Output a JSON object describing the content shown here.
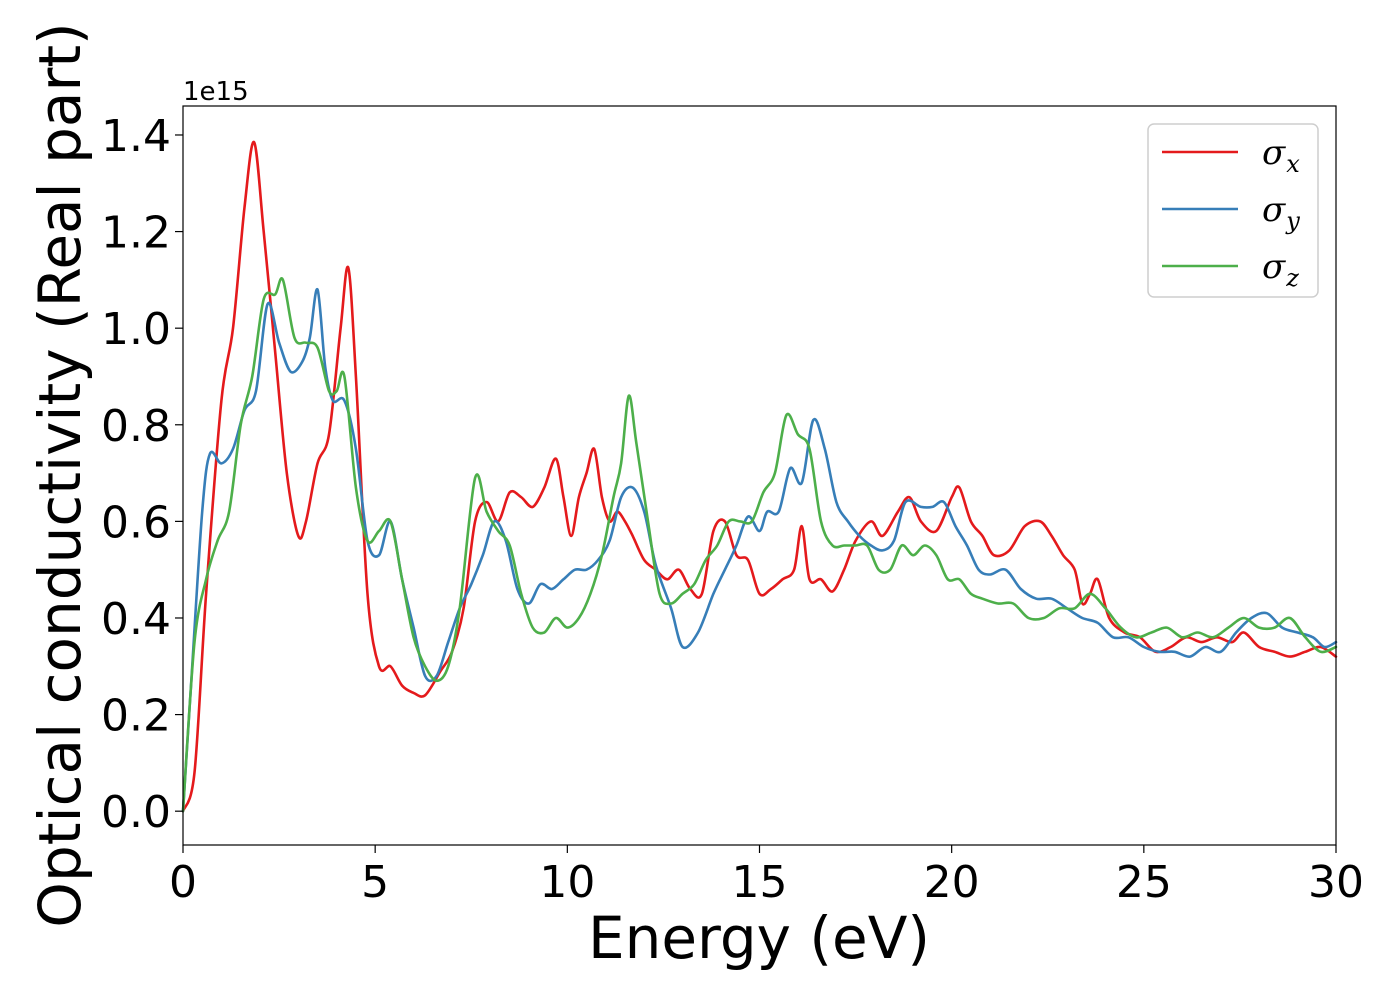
{
  "chart_data": {
    "type": "line",
    "title": "",
    "xlabel": "Energy (eV)",
    "ylabel": "Optical conductivity (Real part)",
    "y_offset_label": "1e15",
    "xlim": [
      0,
      30
    ],
    "ylim": [
      -0.07,
      1.46
    ],
    "xticks": [
      0,
      5,
      10,
      15,
      20,
      25,
      30
    ],
    "xtick_labels": [
      "0",
      "5",
      "10",
      "15",
      "20",
      "25",
      "30"
    ],
    "yticks": [
      0.0,
      0.2,
      0.4,
      0.6,
      0.8,
      1.0,
      1.2,
      1.4
    ],
    "ytick_labels": [
      "0.0",
      "0.2",
      "0.4",
      "0.6",
      "0.8",
      "1.0",
      "1.2",
      "1.4"
    ],
    "legend_position": "top-right",
    "series": [
      {
        "name": "σx",
        "symbol": "σ",
        "subscript": "x",
        "color": "#e41a1c",
        "x": [
          0,
          0.3,
          0.6,
          1.0,
          1.3,
          1.6,
          1.85,
          2.1,
          2.4,
          2.7,
          3.0,
          3.2,
          3.5,
          3.8,
          4.1,
          4.3,
          4.5,
          4.8,
          5.1,
          5.4,
          5.7,
          6.0,
          6.3,
          6.7,
          7.0,
          7.3,
          7.6,
          7.9,
          8.2,
          8.5,
          8.8,
          9.1,
          9.4,
          9.7,
          9.9,
          10.1,
          10.3,
          10.5,
          10.7,
          10.9,
          11.1,
          11.3,
          11.5,
          11.7,
          12.0,
          12.3,
          12.6,
          12.9,
          13.2,
          13.5,
          13.8,
          14.1,
          14.4,
          14.7,
          15.0,
          15.3,
          15.6,
          15.9,
          16.1,
          16.3,
          16.6,
          16.9,
          17.2,
          17.5,
          17.9,
          18.2,
          18.6,
          18.9,
          19.2,
          19.6,
          20.0,
          20.2,
          20.5,
          20.8,
          21.1,
          21.5,
          21.9,
          22.3,
          22.6,
          22.9,
          23.2,
          23.4,
          23.6,
          23.8,
          24.1,
          24.5,
          24.9,
          25.3,
          25.7,
          26.1,
          26.5,
          26.9,
          27.3,
          27.6,
          28.0,
          28.4,
          28.8,
          29.2,
          29.6,
          30.0
        ],
        "values": [
          0.0,
          0.08,
          0.45,
          0.85,
          1.0,
          1.25,
          1.385,
          1.2,
          0.95,
          0.7,
          0.57,
          0.6,
          0.72,
          0.78,
          1.0,
          1.125,
          0.9,
          0.45,
          0.3,
          0.3,
          0.26,
          0.245,
          0.24,
          0.29,
          0.33,
          0.42,
          0.6,
          0.64,
          0.6,
          0.66,
          0.65,
          0.63,
          0.67,
          0.73,
          0.65,
          0.57,
          0.65,
          0.7,
          0.75,
          0.65,
          0.6,
          0.62,
          0.6,
          0.57,
          0.52,
          0.5,
          0.48,
          0.5,
          0.46,
          0.45,
          0.58,
          0.6,
          0.53,
          0.52,
          0.45,
          0.46,
          0.48,
          0.5,
          0.59,
          0.48,
          0.48,
          0.455,
          0.5,
          0.56,
          0.6,
          0.57,
          0.62,
          0.65,
          0.6,
          0.58,
          0.65,
          0.67,
          0.6,
          0.57,
          0.53,
          0.54,
          0.59,
          0.6,
          0.57,
          0.53,
          0.5,
          0.43,
          0.45,
          0.48,
          0.4,
          0.37,
          0.36,
          0.33,
          0.34,
          0.36,
          0.35,
          0.36,
          0.35,
          0.37,
          0.34,
          0.33,
          0.32,
          0.33,
          0.34,
          0.32
        ]
      },
      {
        "name": "σy",
        "symbol": "σ",
        "subscript": "y",
        "color": "#377eb8",
        "x": [
          0,
          0.2,
          0.5,
          0.7,
          1.0,
          1.3,
          1.6,
          1.9,
          2.2,
          2.5,
          2.8,
          3.1,
          3.3,
          3.5,
          3.7,
          3.9,
          4.2,
          4.5,
          4.8,
          5.1,
          5.4,
          5.7,
          6.0,
          6.3,
          6.6,
          6.9,
          7.2,
          7.5,
          7.8,
          8.1,
          8.4,
          8.7,
          9.0,
          9.3,
          9.6,
          9.9,
          10.2,
          10.5,
          10.8,
          11.1,
          11.4,
          11.7,
          12.0,
          12.3,
          12.7,
          13.0,
          13.4,
          13.8,
          14.1,
          14.4,
          14.7,
          15.0,
          15.2,
          15.5,
          15.8,
          16.1,
          16.4,
          16.7,
          17.0,
          17.3,
          17.6,
          17.9,
          18.2,
          18.5,
          18.8,
          19.2,
          19.5,
          19.8,
          20.1,
          20.4,
          20.7,
          21.0,
          21.4,
          21.8,
          22.2,
          22.6,
          23.0,
          23.4,
          23.8,
          24.2,
          24.6,
          25.0,
          25.4,
          25.8,
          26.2,
          26.6,
          27.0,
          27.4,
          27.8,
          28.2,
          28.6,
          29.0,
          29.4,
          29.7,
          30.0
        ],
        "values": [
          0.0,
          0.25,
          0.62,
          0.74,
          0.72,
          0.75,
          0.83,
          0.87,
          1.05,
          0.97,
          0.91,
          0.93,
          0.98,
          1.08,
          0.92,
          0.85,
          0.85,
          0.75,
          0.56,
          0.53,
          0.6,
          0.48,
          0.38,
          0.28,
          0.28,
          0.35,
          0.42,
          0.47,
          0.53,
          0.6,
          0.56,
          0.46,
          0.43,
          0.47,
          0.46,
          0.48,
          0.5,
          0.5,
          0.52,
          0.56,
          0.65,
          0.67,
          0.62,
          0.51,
          0.42,
          0.34,
          0.37,
          0.45,
          0.5,
          0.55,
          0.61,
          0.58,
          0.62,
          0.62,
          0.71,
          0.68,
          0.81,
          0.75,
          0.64,
          0.6,
          0.57,
          0.55,
          0.54,
          0.56,
          0.64,
          0.63,
          0.63,
          0.64,
          0.59,
          0.55,
          0.5,
          0.49,
          0.5,
          0.46,
          0.44,
          0.44,
          0.42,
          0.4,
          0.39,
          0.36,
          0.36,
          0.34,
          0.33,
          0.33,
          0.32,
          0.34,
          0.33,
          0.37,
          0.4,
          0.41,
          0.38,
          0.37,
          0.36,
          0.34,
          0.35
        ]
      },
      {
        "name": "σz",
        "symbol": "σ",
        "subscript": "z",
        "color": "#4daf4a",
        "x": [
          0,
          0.3,
          0.6,
          0.9,
          1.2,
          1.5,
          1.8,
          2.1,
          2.4,
          2.6,
          2.9,
          3.2,
          3.5,
          3.8,
          4.0,
          4.2,
          4.5,
          4.8,
          5.1,
          5.4,
          5.7,
          6.0,
          6.3,
          6.6,
          6.9,
          7.2,
          7.6,
          7.9,
          8.2,
          8.5,
          8.8,
          9.1,
          9.4,
          9.7,
          10.0,
          10.3,
          10.6,
          10.9,
          11.2,
          11.4,
          11.6,
          11.8,
          12.1,
          12.4,
          12.7,
          13.0,
          13.3,
          13.6,
          13.9,
          14.2,
          14.5,
          14.8,
          15.1,
          15.4,
          15.7,
          16.0,
          16.3,
          16.6,
          16.9,
          17.2,
          17.5,
          17.8,
          18.1,
          18.4,
          18.7,
          19.0,
          19.3,
          19.6,
          19.9,
          20.2,
          20.5,
          20.8,
          21.2,
          21.6,
          22.0,
          22.4,
          22.8,
          23.2,
          23.6,
          24.0,
          24.4,
          24.8,
          25.2,
          25.6,
          26.0,
          26.4,
          26.8,
          27.2,
          27.6,
          28.0,
          28.4,
          28.8,
          29.2,
          29.6,
          30.0
        ],
        "values": [
          0.0,
          0.35,
          0.48,
          0.56,
          0.62,
          0.8,
          0.9,
          1.06,
          1.07,
          1.1,
          0.98,
          0.97,
          0.96,
          0.87,
          0.87,
          0.9,
          0.67,
          0.56,
          0.58,
          0.6,
          0.48,
          0.36,
          0.3,
          0.27,
          0.3,
          0.42,
          0.69,
          0.62,
          0.58,
          0.55,
          0.45,
          0.38,
          0.37,
          0.4,
          0.38,
          0.4,
          0.45,
          0.53,
          0.65,
          0.72,
          0.86,
          0.76,
          0.6,
          0.45,
          0.43,
          0.45,
          0.47,
          0.52,
          0.55,
          0.6,
          0.6,
          0.6,
          0.66,
          0.7,
          0.82,
          0.78,
          0.75,
          0.6,
          0.55,
          0.55,
          0.55,
          0.55,
          0.5,
          0.5,
          0.55,
          0.53,
          0.55,
          0.53,
          0.48,
          0.48,
          0.45,
          0.44,
          0.43,
          0.43,
          0.4,
          0.4,
          0.42,
          0.42,
          0.45,
          0.42,
          0.38,
          0.36,
          0.37,
          0.38,
          0.36,
          0.37,
          0.36,
          0.38,
          0.4,
          0.38,
          0.38,
          0.4,
          0.36,
          0.33,
          0.34
        ]
      }
    ]
  }
}
